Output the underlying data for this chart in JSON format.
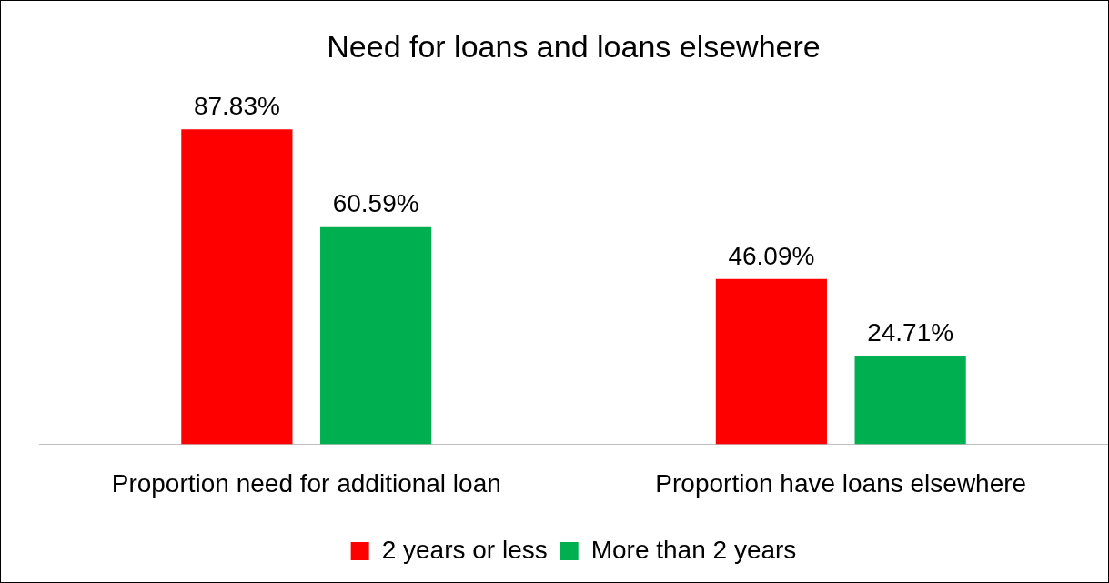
{
  "chart_data": {
    "type": "bar",
    "title": "Need for loans and loans elsewhere",
    "categories": [
      "Proportion need for additional loan",
      "Proportion have loans elsewhere"
    ],
    "series": [
      {
        "name": "2 years or less",
        "color": "#ff0000",
        "values": [
          87.83,
          46.09
        ],
        "value_labels": [
          "87.83%",
          "46.09%"
        ]
      },
      {
        "name": "More than 2 years",
        "color": "#00b050",
        "values": [
          60.59,
          24.71
        ],
        "value_labels": [
          "60.59%",
          "24.71%"
        ]
      }
    ],
    "legend": "bottom",
    "grid": false
  }
}
